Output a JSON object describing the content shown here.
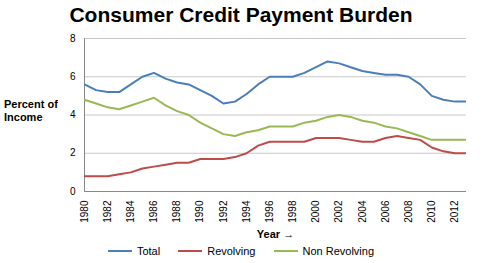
{
  "chart_data": {
    "type": "line",
    "title": "Consumer Credit Payment Burden",
    "x_label": "Year",
    "y_label": "Percent of Income",
    "x": [
      1980,
      1981,
      1982,
      1983,
      1984,
      1985,
      1986,
      1987,
      1988,
      1989,
      1990,
      1991,
      1992,
      1993,
      1994,
      1995,
      1996,
      1997,
      1998,
      1999,
      2000,
      2001,
      2002,
      2003,
      2004,
      2005,
      2006,
      2007,
      2008,
      2009,
      2010,
      2011,
      2012,
      2013
    ],
    "series": [
      {
        "name": "Total",
        "color": "#4a7ebb",
        "values": [
          5.6,
          5.3,
          5.2,
          5.2,
          5.6,
          6.0,
          6.2,
          5.9,
          5.7,
          5.6,
          5.3,
          5.0,
          4.6,
          4.7,
          5.1,
          5.6,
          6.0,
          6.0,
          6.0,
          6.2,
          6.5,
          6.8,
          6.7,
          6.5,
          6.3,
          6.2,
          6.1,
          6.1,
          6.0,
          5.6,
          5.0,
          4.8,
          4.7,
          4.7
        ]
      },
      {
        "name": "Revolving",
        "color": "#be4b48",
        "values": [
          0.8,
          0.8,
          0.8,
          0.9,
          1.0,
          1.2,
          1.3,
          1.4,
          1.5,
          1.5,
          1.7,
          1.7,
          1.7,
          1.8,
          2.0,
          2.4,
          2.6,
          2.6,
          2.6,
          2.6,
          2.8,
          2.8,
          2.8,
          2.7,
          2.6,
          2.6,
          2.8,
          2.9,
          2.8,
          2.7,
          2.3,
          2.1,
          2.0,
          2.0
        ]
      },
      {
        "name": "Non Revolving",
        "color": "#98b954",
        "values": [
          4.8,
          4.6,
          4.4,
          4.3,
          4.5,
          4.7,
          4.9,
          4.5,
          4.2,
          4.0,
          3.6,
          3.3,
          3.0,
          2.9,
          3.1,
          3.2,
          3.4,
          3.4,
          3.4,
          3.6,
          3.7,
          3.9,
          4.0,
          3.9,
          3.7,
          3.6,
          3.4,
          3.3,
          3.1,
          2.9,
          2.7,
          2.7,
          2.7,
          2.7
        ]
      }
    ],
    "xlim": [
      1980,
      2013
    ],
    "xticks": [
      1980,
      1982,
      1984,
      1986,
      1988,
      1990,
      1992,
      1994,
      1996,
      1998,
      2000,
      2002,
      2004,
      2006,
      2008,
      2010,
      2012
    ],
    "ylim": [
      0,
      8
    ],
    "yticks": [
      0,
      2,
      4,
      6,
      8
    ],
    "grid": true,
    "legend": "bottom"
  }
}
